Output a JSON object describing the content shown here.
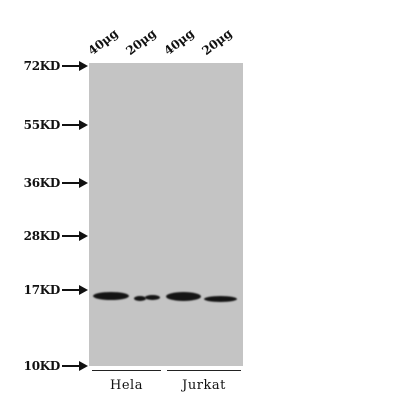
{
  "markers": [
    {
      "label": "72KD",
      "value": 72
    },
    {
      "label": "55KD",
      "value": 55
    },
    {
      "label": "36KD",
      "value": 36
    },
    {
      "label": "28KD",
      "value": 28
    },
    {
      "label": "17KD",
      "value": 17
    },
    {
      "label": "10KD",
      "value": 10
    }
  ],
  "lanes": [
    {
      "label": "40μg",
      "sample": "Hela"
    },
    {
      "label": "20μg",
      "sample": "Hela"
    },
    {
      "label": "40μg",
      "sample": "Jurkat"
    },
    {
      "label": "20μg",
      "sample": "Jurkat"
    }
  ],
  "groups": [
    {
      "label": "Hela"
    },
    {
      "label": "Jurkat"
    }
  ],
  "colors": {
    "membrane": "#c4c4c4",
    "band": "#141414",
    "text": "#111111"
  }
}
